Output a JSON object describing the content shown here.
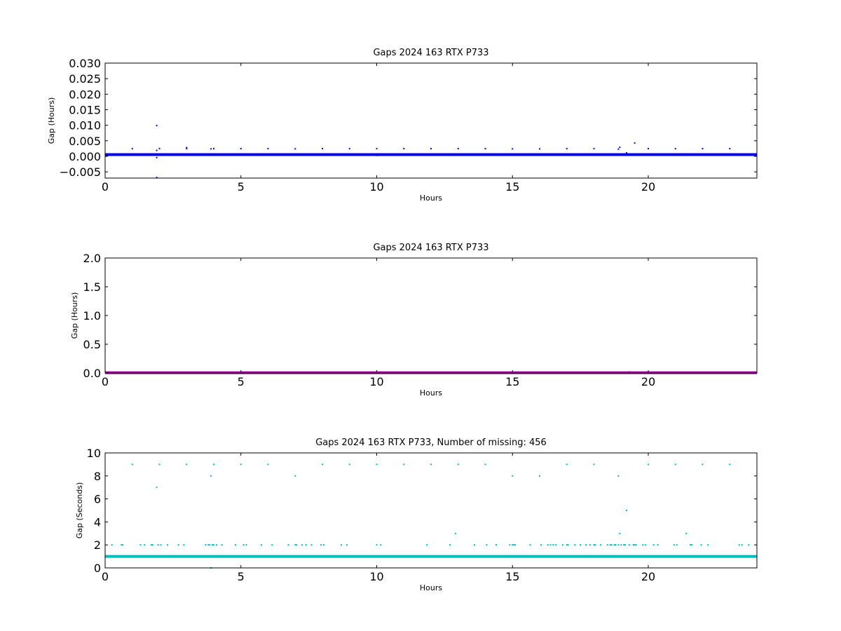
{
  "chart_data": [
    {
      "type": "scatter",
      "title": "Gaps 2024 163 RTX  P733",
      "xlabel": "Hours",
      "ylabel": "Gap (Hours)",
      "xlim": [
        0,
        24
      ],
      "ylim": [
        -0.007,
        0.03
      ],
      "xticks": [
        "0",
        "5",
        "10",
        "15",
        "20"
      ],
      "yticks": [
        "−0.005",
        "0.000",
        "0.005",
        "0.010",
        "0.015",
        "0.020",
        "0.025",
        "0.030"
      ],
      "grid": false,
      "color": "#0000ff",
      "baseline": {
        "y": 0.00056,
        "x_start": 0,
        "x_end": 24
      },
      "series": [
        {
          "x": [
            0.03,
            1.0,
            1.9,
            1.9,
            1.9,
            1.9,
            2.0,
            3.0,
            3.0,
            3.9,
            3.9,
            4.0,
            5.0,
            6.0,
            7.0,
            8.0,
            9.0,
            10.0,
            10.0,
            11.0,
            12.0,
            12.9,
            13.0,
            14.0,
            15.0,
            16.0,
            17.0,
            18.0,
            18.9,
            18.95,
            19.0,
            19.2,
            19.5,
            20.0,
            21.0,
            21.4,
            22.0,
            23.0,
            23.95
          ],
          "y": [
            0.0003,
            0.0025,
            0.0099,
            0.0019,
            -0.0004,
            -0.0068,
            0.0025,
            0.0028,
            0.0025,
            0.0024,
            0.0005,
            0.0025,
            0.0025,
            0.0025,
            0.0024,
            0.0025,
            0.0025,
            0.0025,
            0.0003,
            0.0025,
            0.0025,
            0.0007,
            0.0025,
            0.0025,
            0.0024,
            0.0024,
            0.0025,
            0.0025,
            0.0023,
            0.0029,
            0.0005,
            0.0011,
            0.0043,
            0.0025,
            0.0025,
            0.0008,
            0.0025,
            0.0025,
            0.0003
          ]
        }
      ]
    },
    {
      "type": "scatter",
      "title": "Gaps 2024 163 RTX  P733",
      "xlabel": "Hours",
      "ylabel": "Gap (Hours)",
      "xlim": [
        0,
        24
      ],
      "ylim": [
        0,
        2
      ],
      "xticks": [
        "0",
        "5",
        "10",
        "15",
        "20"
      ],
      "yticks": [
        "0.0",
        "0.5",
        "1.0",
        "1.5",
        "2.0"
      ],
      "grid": false,
      "color": "#aa00aa",
      "baseline": {
        "y": 0.005,
        "x_start": 0,
        "x_end": 24
      },
      "series": [
        {
          "x": [
            19.3
          ],
          "y": 0.02
        }
      ]
    },
    {
      "type": "scatter",
      "title": "Gaps 2024 163 RTX  P733, Number of missing: 456",
      "xlabel": "Hours",
      "ylabel": "Gap (Seconds)",
      "xlim": [
        0,
        24
      ],
      "ylim": [
        0,
        10
      ],
      "xticks": [
        "0",
        "5",
        "10",
        "15",
        "20"
      ],
      "yticks": [
        "0",
        "2",
        "4",
        "6",
        "8",
        "10"
      ],
      "grid": false,
      "color": "#00bbbb",
      "baseline": {
        "y": 1,
        "x_start": 0,
        "x_end": 24
      },
      "series": [
        {
          "x": [
            1.0,
            2.0,
            3.0,
            4.0,
            5.0,
            6.0,
            8.0,
            9.0,
            10.0,
            11.0,
            12.0,
            13.0,
            14.0,
            17.0,
            18.0,
            20.0,
            21.0,
            22.0,
            23.0,
            1.9,
            3.9,
            7.0,
            15.0,
            16.0,
            18.9,
            12.9,
            18.95,
            21.4,
            19.2,
            3.9
          ],
          "y": [
            9,
            9,
            9,
            9,
            9,
            9,
            9,
            9,
            9,
            9,
            9,
            9,
            9,
            9,
            9,
            9,
            9,
            9,
            9,
            7,
            8,
            8,
            8,
            8,
            8,
            3,
            3,
            3,
            5,
            0
          ]
        },
        {
          "x": [
            0.25,
            0.6,
            0.65,
            1.3,
            1.45,
            1.7,
            1.75,
            1.95,
            2.05,
            2.3,
            2.7,
            2.9,
            3.7,
            3.8,
            3.85,
            3.95,
            4.0,
            4.1,
            4.3,
            4.8,
            5.1,
            5.2,
            5.75,
            6.15,
            6.75,
            7.0,
            7.05,
            7.25,
            7.4,
            7.6,
            7.95,
            8.05,
            8.7,
            8.9,
            10.0,
            10.15,
            11.85,
            12.7,
            13.6,
            14.05,
            14.4,
            14.9,
            15.0,
            15.05,
            15.1,
            15.65,
            16.05,
            16.3,
            16.4,
            16.5,
            16.6,
            16.85,
            17.0,
            17.05,
            17.3,
            17.5,
            17.7,
            17.85,
            18.0,
            18.05,
            18.25,
            18.5,
            18.6,
            18.65,
            18.75,
            18.8,
            18.9,
            19.0,
            19.1,
            19.15,
            19.3,
            19.45,
            19.5,
            19.55,
            19.8,
            19.9,
            20.2,
            20.35,
            20.95,
            21.05,
            21.55,
            21.6,
            21.95,
            22.2,
            23.35,
            23.45,
            23.7
          ],
          "y": 2
        }
      ]
    }
  ]
}
